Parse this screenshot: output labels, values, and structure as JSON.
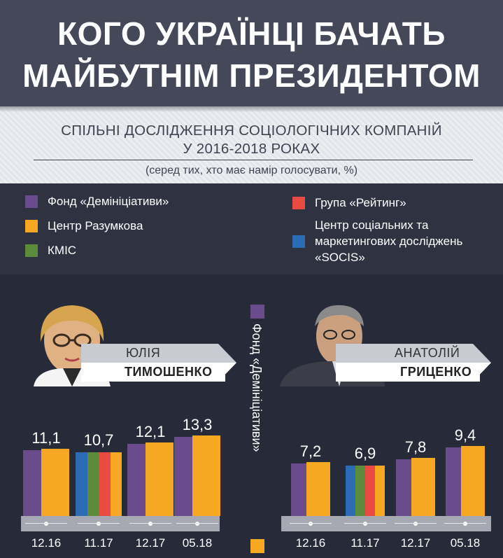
{
  "header": {
    "title_line1": "КОГО УКРАЇНЦІ БАЧАТЬ",
    "title_line2": "МАЙБУТНІМ ПРЕЗИДЕНТОМ",
    "subtitle_line1": "СПІЛЬНІ ДОСЛІДЖЕННЯ СОЦІОЛОГІЧНИХ КОМПАНІЙ",
    "subtitle_line2": "У 2016-2018 РОКАХ",
    "note": "(серед тих, хто має намір голосувати, %)"
  },
  "legend": [
    {
      "label": "Фонд «Демініціативи»",
      "color": "#6a4c8c"
    },
    {
      "label": "Центр Разумкова",
      "color": "#f7a823"
    },
    {
      "label": "КМІС",
      "color": "#5c8b3c"
    },
    {
      "label": "Група «Рейтинг»",
      "color": "#e94a42"
    },
    {
      "label_line1": "Центр соціальних та",
      "label_line2": "маркетингових досліджень",
      "label_line3": "«SOCIS»",
      "color": "#2b6cb5"
    }
  ],
  "center_label": "Фонд «Демініціативи»",
  "colors": {
    "purple": "#6a4c8c",
    "orange": "#f7a823",
    "green": "#5c8b3c",
    "red": "#e94a42",
    "blue": "#2b6cb5"
  },
  "chart_data": [
    {
      "type": "bar",
      "first_name": "ЮЛІЯ",
      "last_name": "ТИМОШЕНКО",
      "categories": [
        "12.16",
        "11.17",
        "12.17",
        "05.18"
      ],
      "values": [
        11.1,
        10.7,
        12.1,
        13.3
      ],
      "value_labels": [
        "11,1",
        "10,7",
        "12,1",
        "13,3"
      ],
      "bar_segments": [
        [
          "purple",
          "orange"
        ],
        [
          "blue",
          "green",
          "red",
          "orange"
        ],
        [
          "purple",
          "orange"
        ],
        [
          "purple",
          "orange"
        ]
      ]
    },
    {
      "type": "bar",
      "first_name": "АНАТОЛІЙ",
      "last_name": "ГРИЦЕНКО",
      "categories": [
        "12.16",
        "11.17",
        "12.17",
        "05.18"
      ],
      "values": [
        7.2,
        6.9,
        7.8,
        9.4
      ],
      "value_labels": [
        "7,2",
        "6,9",
        "7,8",
        "9,4"
      ],
      "bar_segments": [
        [
          "purple",
          "orange"
        ],
        [
          "blue",
          "green",
          "red",
          "orange"
        ],
        [
          "purple",
          "orange"
        ],
        [
          "purple",
          "orange"
        ]
      ]
    }
  ]
}
